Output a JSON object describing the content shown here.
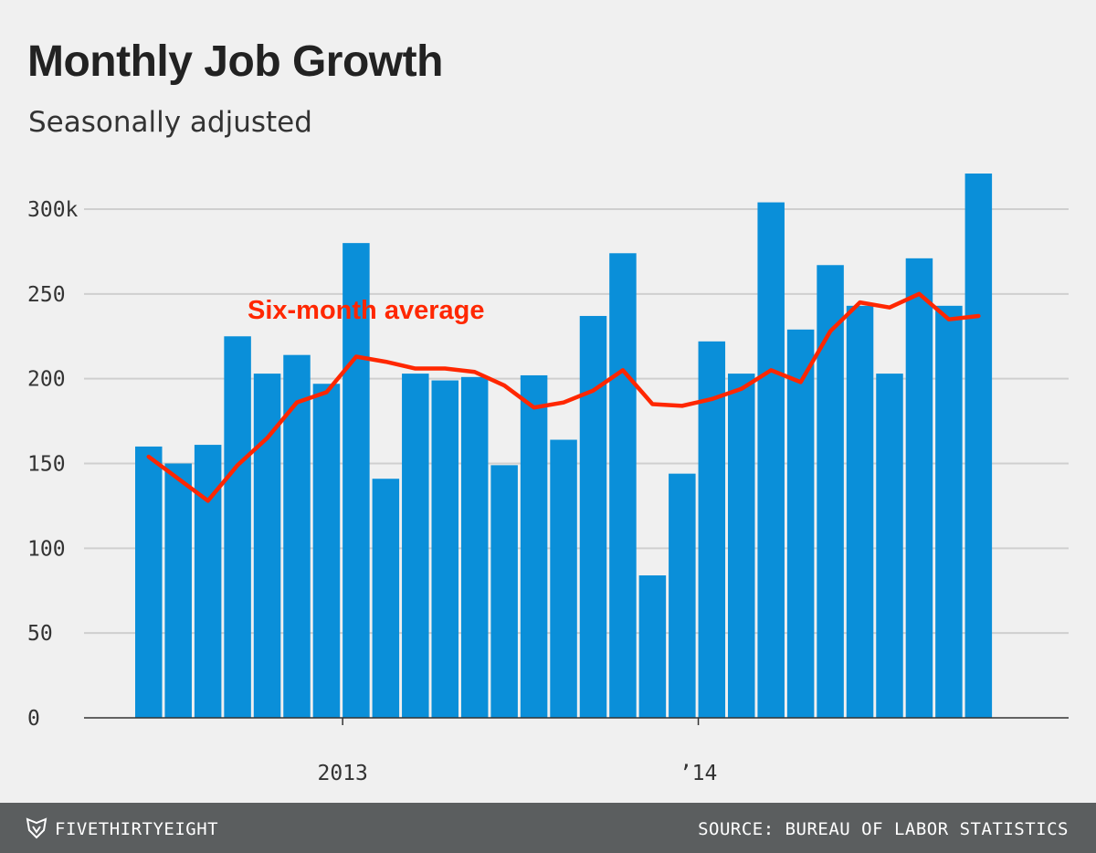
{
  "header": {
    "title": "Monthly Job Growth",
    "subtitle": "Seasonally adjusted"
  },
  "footer": {
    "brand": "FIVETHIRTYEIGHT",
    "source": "SOURCE: BUREAU OF LABOR STATISTICS"
  },
  "colors": {
    "bar": "#0a8fd9",
    "line": "#ff2700",
    "grid": "#cfcfcf",
    "background": "#f0f0f0",
    "footer": "#5b5e5f"
  },
  "chart_data": {
    "type": "bar",
    "title": "Monthly Job Growth",
    "subtitle": "Seasonally adjusted",
    "xlabel": "",
    "ylabel": "",
    "ylim": [
      0,
      320
    ],
    "yticks": [
      0,
      50,
      100,
      150,
      200,
      250,
      300
    ],
    "ytick_labels": [
      "0",
      "50",
      "100",
      "150",
      "200",
      "250",
      "300k"
    ],
    "xtick_labels": [
      {
        "label": "2013",
        "index": 6.5
      },
      {
        "label": "’14",
        "index": 18.5
      }
    ],
    "grid": true,
    "series": [
      {
        "name": "Monthly job growth",
        "kind": "bar",
        "values": [
          160,
          150,
          161,
          225,
          203,
          214,
          197,
          280,
          141,
          203,
          199,
          201,
          149,
          202,
          164,
          237,
          274,
          84,
          144,
          222,
          203,
          304,
          229,
          267,
          243,
          203,
          271,
          243,
          321
        ]
      },
      {
        "name": "Six-month average",
        "kind": "line",
        "label": "Six-month average",
        "values": [
          154,
          141,
          128,
          149,
          165,
          186,
          192,
          213,
          210,
          206,
          206,
          204,
          196,
          183,
          186,
          193,
          205,
          185,
          184,
          188,
          194,
          205,
          198,
          228,
          245,
          242,
          250,
          235,
          237
        ]
      }
    ]
  }
}
